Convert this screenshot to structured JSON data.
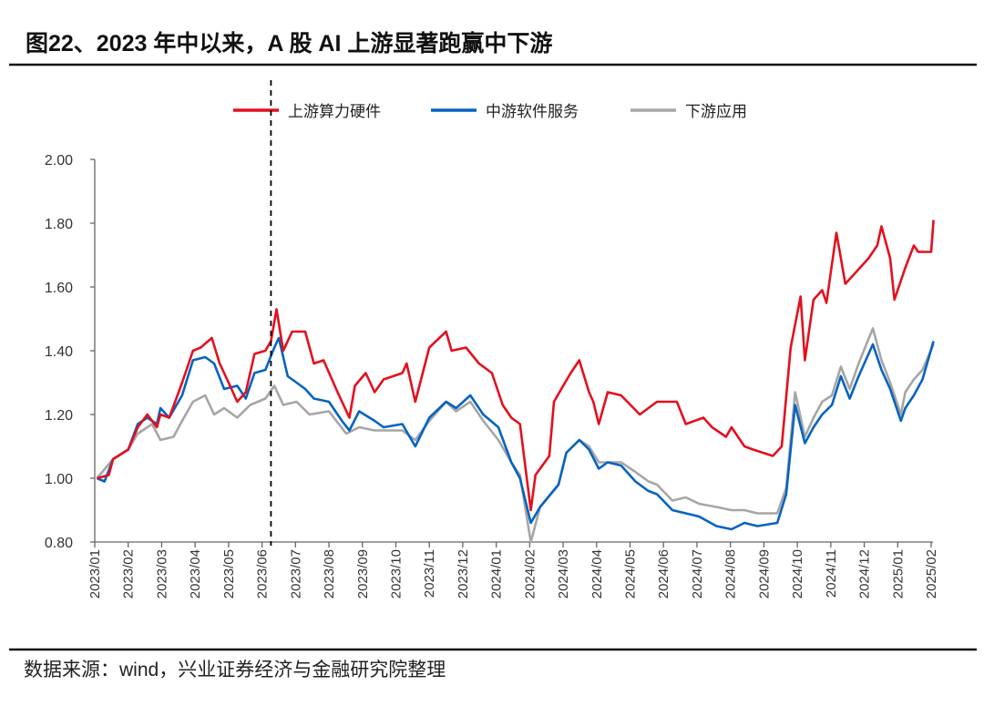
{
  "title": "图22、2023 年中以来，A 股 AI 上游显著跑赢中下游",
  "source": "数据来源：wind，兴业证券经济与金融研究院整理",
  "chart_data": {
    "type": "line",
    "title": "图22、2023 年中以来，A 股 AI 上游显著跑赢中下游",
    "xlabel": "",
    "ylabel": "",
    "ylim": [
      0.8,
      2.0
    ],
    "yticks": [
      "0.80",
      "1.00",
      "1.20",
      "1.40",
      "1.60",
      "1.80",
      "2.00"
    ],
    "xticks": [
      "2023/01",
      "2023/02",
      "2023/03",
      "2023/04",
      "2023/05",
      "2023/06",
      "2023/07",
      "2023/08",
      "2023/09",
      "2023/10",
      "2023/11",
      "2023/12",
      "2024/01",
      "2024/02",
      "2024/03",
      "2024/04",
      "2024/05",
      "2024/06",
      "2024/07",
      "2024/08",
      "2024/09",
      "2024/10",
      "2024/11",
      "2024/12",
      "2025/01",
      "2025/02"
    ],
    "grid": false,
    "legend_position": "top",
    "reference_line": {
      "date": "2023-06-09",
      "style": "dashed",
      "color": "#000000"
    },
    "series": [
      {
        "name": "上游算力硬件",
        "color": "#E3101E",
        "points": [
          [
            "2023-01-03",
            1.0
          ],
          [
            "2023-01-14",
            1.01
          ],
          [
            "2023-01-18",
            1.06
          ],
          [
            "2023-02-01",
            1.09
          ],
          [
            "2023-02-09",
            1.16
          ],
          [
            "2023-02-17",
            1.2
          ],
          [
            "2023-02-25",
            1.16
          ],
          [
            "2023-02-28",
            1.2
          ],
          [
            "2023-03-08",
            1.19
          ],
          [
            "2023-03-20",
            1.3
          ],
          [
            "2023-03-30",
            1.4
          ],
          [
            "2023-04-06",
            1.41
          ],
          [
            "2023-04-16",
            1.44
          ],
          [
            "2023-04-23",
            1.36
          ],
          [
            "2023-05-01",
            1.3
          ],
          [
            "2023-05-09",
            1.24
          ],
          [
            "2023-05-17",
            1.27
          ],
          [
            "2023-05-25",
            1.39
          ],
          [
            "2023-06-04",
            1.4
          ],
          [
            "2023-06-09",
            1.43
          ],
          [
            "2023-06-14",
            1.53
          ],
          [
            "2023-06-20",
            1.4
          ],
          [
            "2023-06-28",
            1.46
          ],
          [
            "2023-07-10",
            1.46
          ],
          [
            "2023-07-18",
            1.36
          ],
          [
            "2023-07-27",
            1.37
          ],
          [
            "2023-08-09",
            1.27
          ],
          [
            "2023-08-20",
            1.19
          ],
          [
            "2023-08-25",
            1.29
          ],
          [
            "2023-09-04",
            1.33
          ],
          [
            "2023-09-12",
            1.27
          ],
          [
            "2023-09-20",
            1.31
          ],
          [
            "2023-10-07",
            1.33
          ],
          [
            "2023-10-11",
            1.36
          ],
          [
            "2023-10-19",
            1.24
          ],
          [
            "2023-11-01",
            1.41
          ],
          [
            "2023-11-16",
            1.46
          ],
          [
            "2023-11-21",
            1.4
          ],
          [
            "2023-12-04",
            1.41
          ],
          [
            "2023-12-16",
            1.36
          ],
          [
            "2023-12-28",
            1.33
          ],
          [
            "2024-01-07",
            1.23
          ],
          [
            "2024-01-15",
            1.19
          ],
          [
            "2024-01-23",
            1.17
          ],
          [
            "2024-02-02",
            0.9
          ],
          [
            "2024-02-06",
            1.01
          ],
          [
            "2024-02-18",
            1.07
          ],
          [
            "2024-02-22",
            1.24
          ],
          [
            "2024-03-01",
            1.29
          ],
          [
            "2024-03-08",
            1.33
          ],
          [
            "2024-03-16",
            1.37
          ],
          [
            "2024-03-25",
            1.27
          ],
          [
            "2024-03-29",
            1.24
          ],
          [
            "2024-04-03",
            1.17
          ],
          [
            "2024-04-11",
            1.27
          ],
          [
            "2024-04-23",
            1.26
          ],
          [
            "2024-05-10",
            1.2
          ],
          [
            "2024-05-26",
            1.24
          ],
          [
            "2024-06-13",
            1.24
          ],
          [
            "2024-06-21",
            1.17
          ],
          [
            "2024-07-07",
            1.19
          ],
          [
            "2024-07-15",
            1.16
          ],
          [
            "2024-07-28",
            1.13
          ],
          [
            "2024-08-02",
            1.16
          ],
          [
            "2024-08-14",
            1.1
          ],
          [
            "2024-08-22",
            1.09
          ],
          [
            "2024-09-09",
            1.07
          ],
          [
            "2024-09-17",
            1.1
          ],
          [
            "2024-09-25",
            1.41
          ],
          [
            "2024-10-04",
            1.57
          ],
          [
            "2024-10-08",
            1.37
          ],
          [
            "2024-10-16",
            1.56
          ],
          [
            "2024-10-24",
            1.59
          ],
          [
            "2024-10-28",
            1.55
          ],
          [
            "2024-11-06",
            1.77
          ],
          [
            "2024-11-14",
            1.61
          ],
          [
            "2024-11-22",
            1.64
          ],
          [
            "2024-12-05",
            1.69
          ],
          [
            "2024-12-13",
            1.73
          ],
          [
            "2024-12-17",
            1.79
          ],
          [
            "2024-12-25",
            1.69
          ],
          [
            "2024-12-29",
            1.56
          ],
          [
            "2025-01-08",
            1.66
          ],
          [
            "2025-01-16",
            1.73
          ],
          [
            "2025-01-20",
            1.71
          ],
          [
            "2025-02-01",
            1.71
          ],
          [
            "2025-02-03",
            1.81
          ]
        ]
      },
      {
        "name": "中游软件服务",
        "color": "#0563C1",
        "points": [
          [
            "2023-01-03",
            1.0
          ],
          [
            "2023-01-10",
            0.99
          ],
          [
            "2023-01-18",
            1.06
          ],
          [
            "2023-02-01",
            1.09
          ],
          [
            "2023-02-09",
            1.17
          ],
          [
            "2023-02-17",
            1.19
          ],
          [
            "2023-02-25",
            1.17
          ],
          [
            "2023-02-28",
            1.22
          ],
          [
            "2023-03-08",
            1.19
          ],
          [
            "2023-03-20",
            1.26
          ],
          [
            "2023-03-30",
            1.37
          ],
          [
            "2023-04-10",
            1.38
          ],
          [
            "2023-04-18",
            1.36
          ],
          [
            "2023-04-27",
            1.28
          ],
          [
            "2023-05-09",
            1.29
          ],
          [
            "2023-05-17",
            1.25
          ],
          [
            "2023-05-25",
            1.33
          ],
          [
            "2023-06-04",
            1.34
          ],
          [
            "2023-06-12",
            1.41
          ],
          [
            "2023-06-16",
            1.44
          ],
          [
            "2023-06-24",
            1.32
          ],
          [
            "2023-07-02",
            1.3
          ],
          [
            "2023-07-10",
            1.28
          ],
          [
            "2023-07-18",
            1.25
          ],
          [
            "2023-08-01",
            1.24
          ],
          [
            "2023-08-13",
            1.18
          ],
          [
            "2023-08-20",
            1.15
          ],
          [
            "2023-08-29",
            1.21
          ],
          [
            "2023-09-12",
            1.18
          ],
          [
            "2023-09-20",
            1.16
          ],
          [
            "2023-10-07",
            1.17
          ],
          [
            "2023-10-19",
            1.1
          ],
          [
            "2023-11-01",
            1.19
          ],
          [
            "2023-11-16",
            1.24
          ],
          [
            "2023-11-25",
            1.22
          ],
          [
            "2023-12-08",
            1.26
          ],
          [
            "2023-12-20",
            1.2
          ],
          [
            "2024-01-03",
            1.16
          ],
          [
            "2024-01-15",
            1.05
          ],
          [
            "2024-01-23",
            1.0
          ],
          [
            "2024-02-02",
            0.86
          ],
          [
            "2024-02-10",
            0.91
          ],
          [
            "2024-02-26",
            0.98
          ],
          [
            "2024-03-04",
            1.08
          ],
          [
            "2024-03-16",
            1.12
          ],
          [
            "2024-03-25",
            1.09
          ],
          [
            "2024-04-03",
            1.03
          ],
          [
            "2024-04-11",
            1.05
          ],
          [
            "2024-04-23",
            1.04
          ],
          [
            "2024-05-06",
            0.99
          ],
          [
            "2024-05-18",
            0.96
          ],
          [
            "2024-05-26",
            0.95
          ],
          [
            "2024-06-09",
            0.9
          ],
          [
            "2024-06-21",
            0.89
          ],
          [
            "2024-07-03",
            0.88
          ],
          [
            "2024-07-19",
            0.85
          ],
          [
            "2024-08-02",
            0.84
          ],
          [
            "2024-08-14",
            0.86
          ],
          [
            "2024-08-26",
            0.85
          ],
          [
            "2024-09-13",
            0.86
          ],
          [
            "2024-09-21",
            0.95
          ],
          [
            "2024-09-29",
            1.23
          ],
          [
            "2024-10-08",
            1.11
          ],
          [
            "2024-10-16",
            1.16
          ],
          [
            "2024-10-24",
            1.2
          ],
          [
            "2024-11-02",
            1.23
          ],
          [
            "2024-11-10",
            1.32
          ],
          [
            "2024-11-18",
            1.25
          ],
          [
            "2024-11-26",
            1.32
          ],
          [
            "2024-12-09",
            1.42
          ],
          [
            "2024-12-17",
            1.34
          ],
          [
            "2024-12-25",
            1.28
          ],
          [
            "2025-01-04",
            1.18
          ],
          [
            "2025-01-08",
            1.22
          ],
          [
            "2025-01-16",
            1.26
          ],
          [
            "2025-01-24",
            1.31
          ],
          [
            "2025-02-03",
            1.43
          ]
        ]
      },
      {
        "name": "下游应用",
        "color": "#A6A6A6",
        "points": [
          [
            "2023-01-03",
            1.0
          ],
          [
            "2023-01-18",
            1.06
          ],
          [
            "2023-02-01",
            1.09
          ],
          [
            "2023-02-09",
            1.14
          ],
          [
            "2023-02-21",
            1.17
          ],
          [
            "2023-02-28",
            1.12
          ],
          [
            "2023-03-12",
            1.13
          ],
          [
            "2023-03-20",
            1.18
          ],
          [
            "2023-03-30",
            1.24
          ],
          [
            "2023-04-10",
            1.26
          ],
          [
            "2023-04-18",
            1.2
          ],
          [
            "2023-04-27",
            1.22
          ],
          [
            "2023-05-09",
            1.19
          ],
          [
            "2023-05-21",
            1.23
          ],
          [
            "2023-06-04",
            1.25
          ],
          [
            "2023-06-12",
            1.29
          ],
          [
            "2023-06-20",
            1.23
          ],
          [
            "2023-07-02",
            1.24
          ],
          [
            "2023-07-14",
            1.2
          ],
          [
            "2023-08-01",
            1.21
          ],
          [
            "2023-08-17",
            1.14
          ],
          [
            "2023-08-29",
            1.16
          ],
          [
            "2023-09-12",
            1.15
          ],
          [
            "2023-09-20",
            1.15
          ],
          [
            "2023-10-07",
            1.15
          ],
          [
            "2023-10-19",
            1.12
          ],
          [
            "2023-11-01",
            1.18
          ],
          [
            "2023-11-16",
            1.24
          ],
          [
            "2023-11-25",
            1.21
          ],
          [
            "2023-12-08",
            1.24
          ],
          [
            "2023-12-20",
            1.18
          ],
          [
            "2024-01-03",
            1.12
          ],
          [
            "2024-01-15",
            1.05
          ],
          [
            "2024-01-23",
            1.01
          ],
          [
            "2024-02-02",
            0.8
          ],
          [
            "2024-02-10",
            0.91
          ],
          [
            "2024-02-26",
            0.98
          ],
          [
            "2024-03-04",
            1.08
          ],
          [
            "2024-03-16",
            1.12
          ],
          [
            "2024-03-25",
            1.1
          ],
          [
            "2024-04-03",
            1.05
          ],
          [
            "2024-04-11",
            1.05
          ],
          [
            "2024-04-23",
            1.05
          ],
          [
            "2024-05-06",
            1.02
          ],
          [
            "2024-05-18",
            0.99
          ],
          [
            "2024-05-26",
            0.98
          ],
          [
            "2024-06-09",
            0.93
          ],
          [
            "2024-06-21",
            0.94
          ],
          [
            "2024-07-03",
            0.92
          ],
          [
            "2024-07-19",
            0.91
          ],
          [
            "2024-08-02",
            0.9
          ],
          [
            "2024-08-14",
            0.9
          ],
          [
            "2024-08-26",
            0.89
          ],
          [
            "2024-09-13",
            0.89
          ],
          [
            "2024-09-21",
            0.97
          ],
          [
            "2024-09-29",
            1.27
          ],
          [
            "2024-10-08",
            1.13
          ],
          [
            "2024-10-16",
            1.19
          ],
          [
            "2024-10-24",
            1.24
          ],
          [
            "2024-11-02",
            1.26
          ],
          [
            "2024-11-10",
            1.35
          ],
          [
            "2024-11-18",
            1.28
          ],
          [
            "2024-11-26",
            1.36
          ],
          [
            "2024-12-09",
            1.47
          ],
          [
            "2024-12-17",
            1.37
          ],
          [
            "2024-12-25",
            1.3
          ],
          [
            "2025-01-04",
            1.2
          ],
          [
            "2025-01-08",
            1.27
          ],
          [
            "2025-01-16",
            1.31
          ],
          [
            "2025-01-24",
            1.34
          ],
          [
            "2025-02-03",
            1.42
          ]
        ]
      }
    ]
  }
}
